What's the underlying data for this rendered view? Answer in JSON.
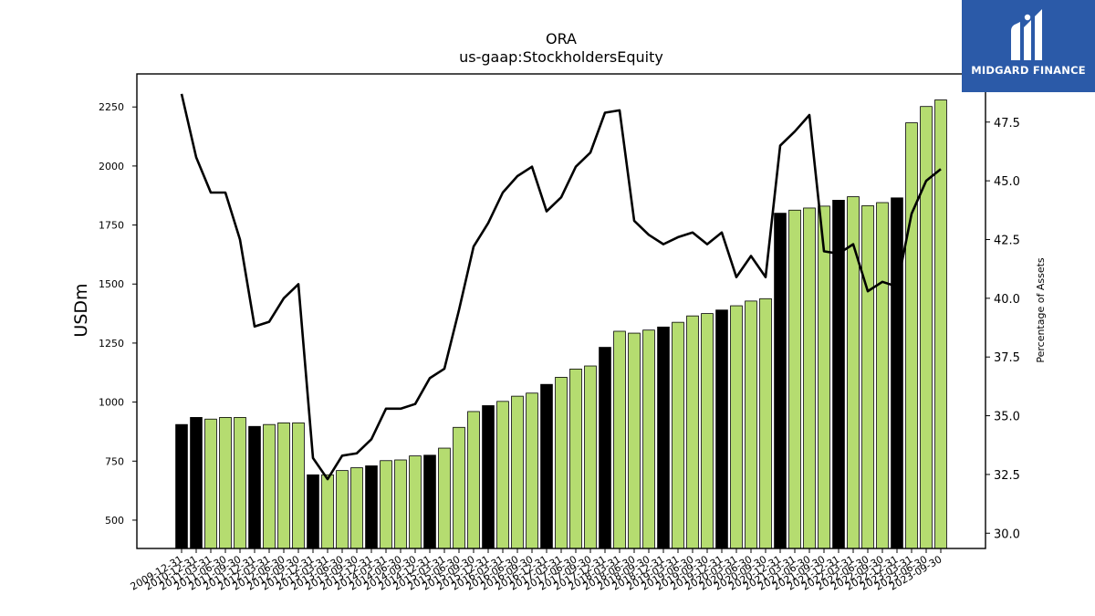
{
  "logo": {
    "text": "MIDGARD FINANCE",
    "background": "#2b5aa8"
  },
  "chart_data": {
    "type": "bar",
    "title": "ORA",
    "subtitle": "us-gaap:StockholdersEquity",
    "ylabel": "USDm",
    "y2label": "Percentage of Assets",
    "ylim": [
      380,
      2390
    ],
    "y2lim": [
      29.35,
      49.55
    ],
    "yticks": [
      500,
      750,
      1000,
      1250,
      1500,
      1750,
      2000,
      2250
    ],
    "y2ticks": [
      30.0,
      32.5,
      35.0,
      37.5,
      40.0,
      42.5,
      45.0,
      47.5
    ],
    "colors": {
      "annual": "#000000",
      "quarterly": "#b5dc70",
      "line": "#000000"
    },
    "categories": [
      "2009-12-31",
      "2010-12-31",
      "2011-03-31",
      "2011-06-30",
      "2011-09-30",
      "2011-12-31",
      "2012-03-31",
      "2012-06-30",
      "2012-09-30",
      "2012-12-31",
      "2013-03-31",
      "2013-06-30",
      "2013-09-30",
      "2013-12-31",
      "2014-03-31",
      "2014-06-30",
      "2014-09-30",
      "2014-12-31",
      "2015-03-31",
      "2015-06-30",
      "2015-09-30",
      "2015-12-31",
      "2016-03-31",
      "2016-06-30",
      "2016-09-30",
      "2016-12-31",
      "2017-03-31",
      "2017-06-30",
      "2017-09-30",
      "2017-12-31",
      "2018-03-31",
      "2018-06-30",
      "2018-09-30",
      "2018-12-31",
      "2019-03-31",
      "2019-06-30",
      "2019-09-30",
      "2019-12-31",
      "2020-03-31",
      "2020-06-30",
      "2020-09-30",
      "2020-12-31",
      "2021-03-31",
      "2021-06-30",
      "2021-09-30",
      "2021-12-31",
      "2022-03-31",
      "2022-06-30",
      "2022-09-30",
      "2022-12-31",
      "2023-03-31",
      "2023-06-30",
      "2023-09-30"
    ],
    "series": [
      {
        "kind": "bar",
        "values": [
          905,
          935,
          928,
          935,
          935,
          897,
          905,
          912,
          912,
          692,
          692,
          710,
          722,
          730,
          752,
          755,
          772,
          775,
          805,
          893,
          960,
          985,
          1003,
          1025,
          1038,
          1075,
          1105,
          1140,
          1153,
          1232,
          1300,
          1292,
          1305,
          1318,
          1338,
          1365,
          1375,
          1390,
          1408,
          1428,
          1438,
          1800,
          1813,
          1822,
          1830,
          1855,
          1870,
          1832,
          1845,
          1865,
          2183,
          2252,
          2280
        ],
        "annual": [
          true,
          true,
          false,
          false,
          false,
          true,
          false,
          false,
          false,
          true,
          false,
          false,
          false,
          true,
          false,
          false,
          false,
          true,
          false,
          false,
          false,
          true,
          false,
          false,
          false,
          true,
          false,
          false,
          false,
          true,
          false,
          false,
          false,
          true,
          false,
          false,
          false,
          true,
          false,
          false,
          false,
          true,
          false,
          false,
          false,
          true,
          false,
          false,
          false,
          true,
          false,
          false,
          false
        ]
      },
      {
        "kind": "line",
        "axis": "right",
        "values": [
          48.7,
          46.0,
          44.5,
          44.5,
          42.5,
          38.8,
          39.0,
          40.0,
          40.6,
          33.2,
          32.3,
          33.3,
          33.4,
          34.0,
          35.3,
          35.3,
          35.5,
          36.6,
          37.0,
          39.5,
          42.2,
          43.2,
          44.5,
          45.2,
          45.6,
          43.7,
          44.3,
          45.6,
          46.2,
          47.9,
          48.0,
          43.3,
          42.7,
          42.3,
          42.6,
          42.8,
          42.3,
          42.8,
          40.9,
          41.8,
          40.9,
          46.5,
          47.1,
          47.8,
          42.0,
          41.9,
          42.3,
          40.3,
          40.7,
          40.5,
          43.6,
          45.0,
          45.5
        ]
      }
    ]
  }
}
